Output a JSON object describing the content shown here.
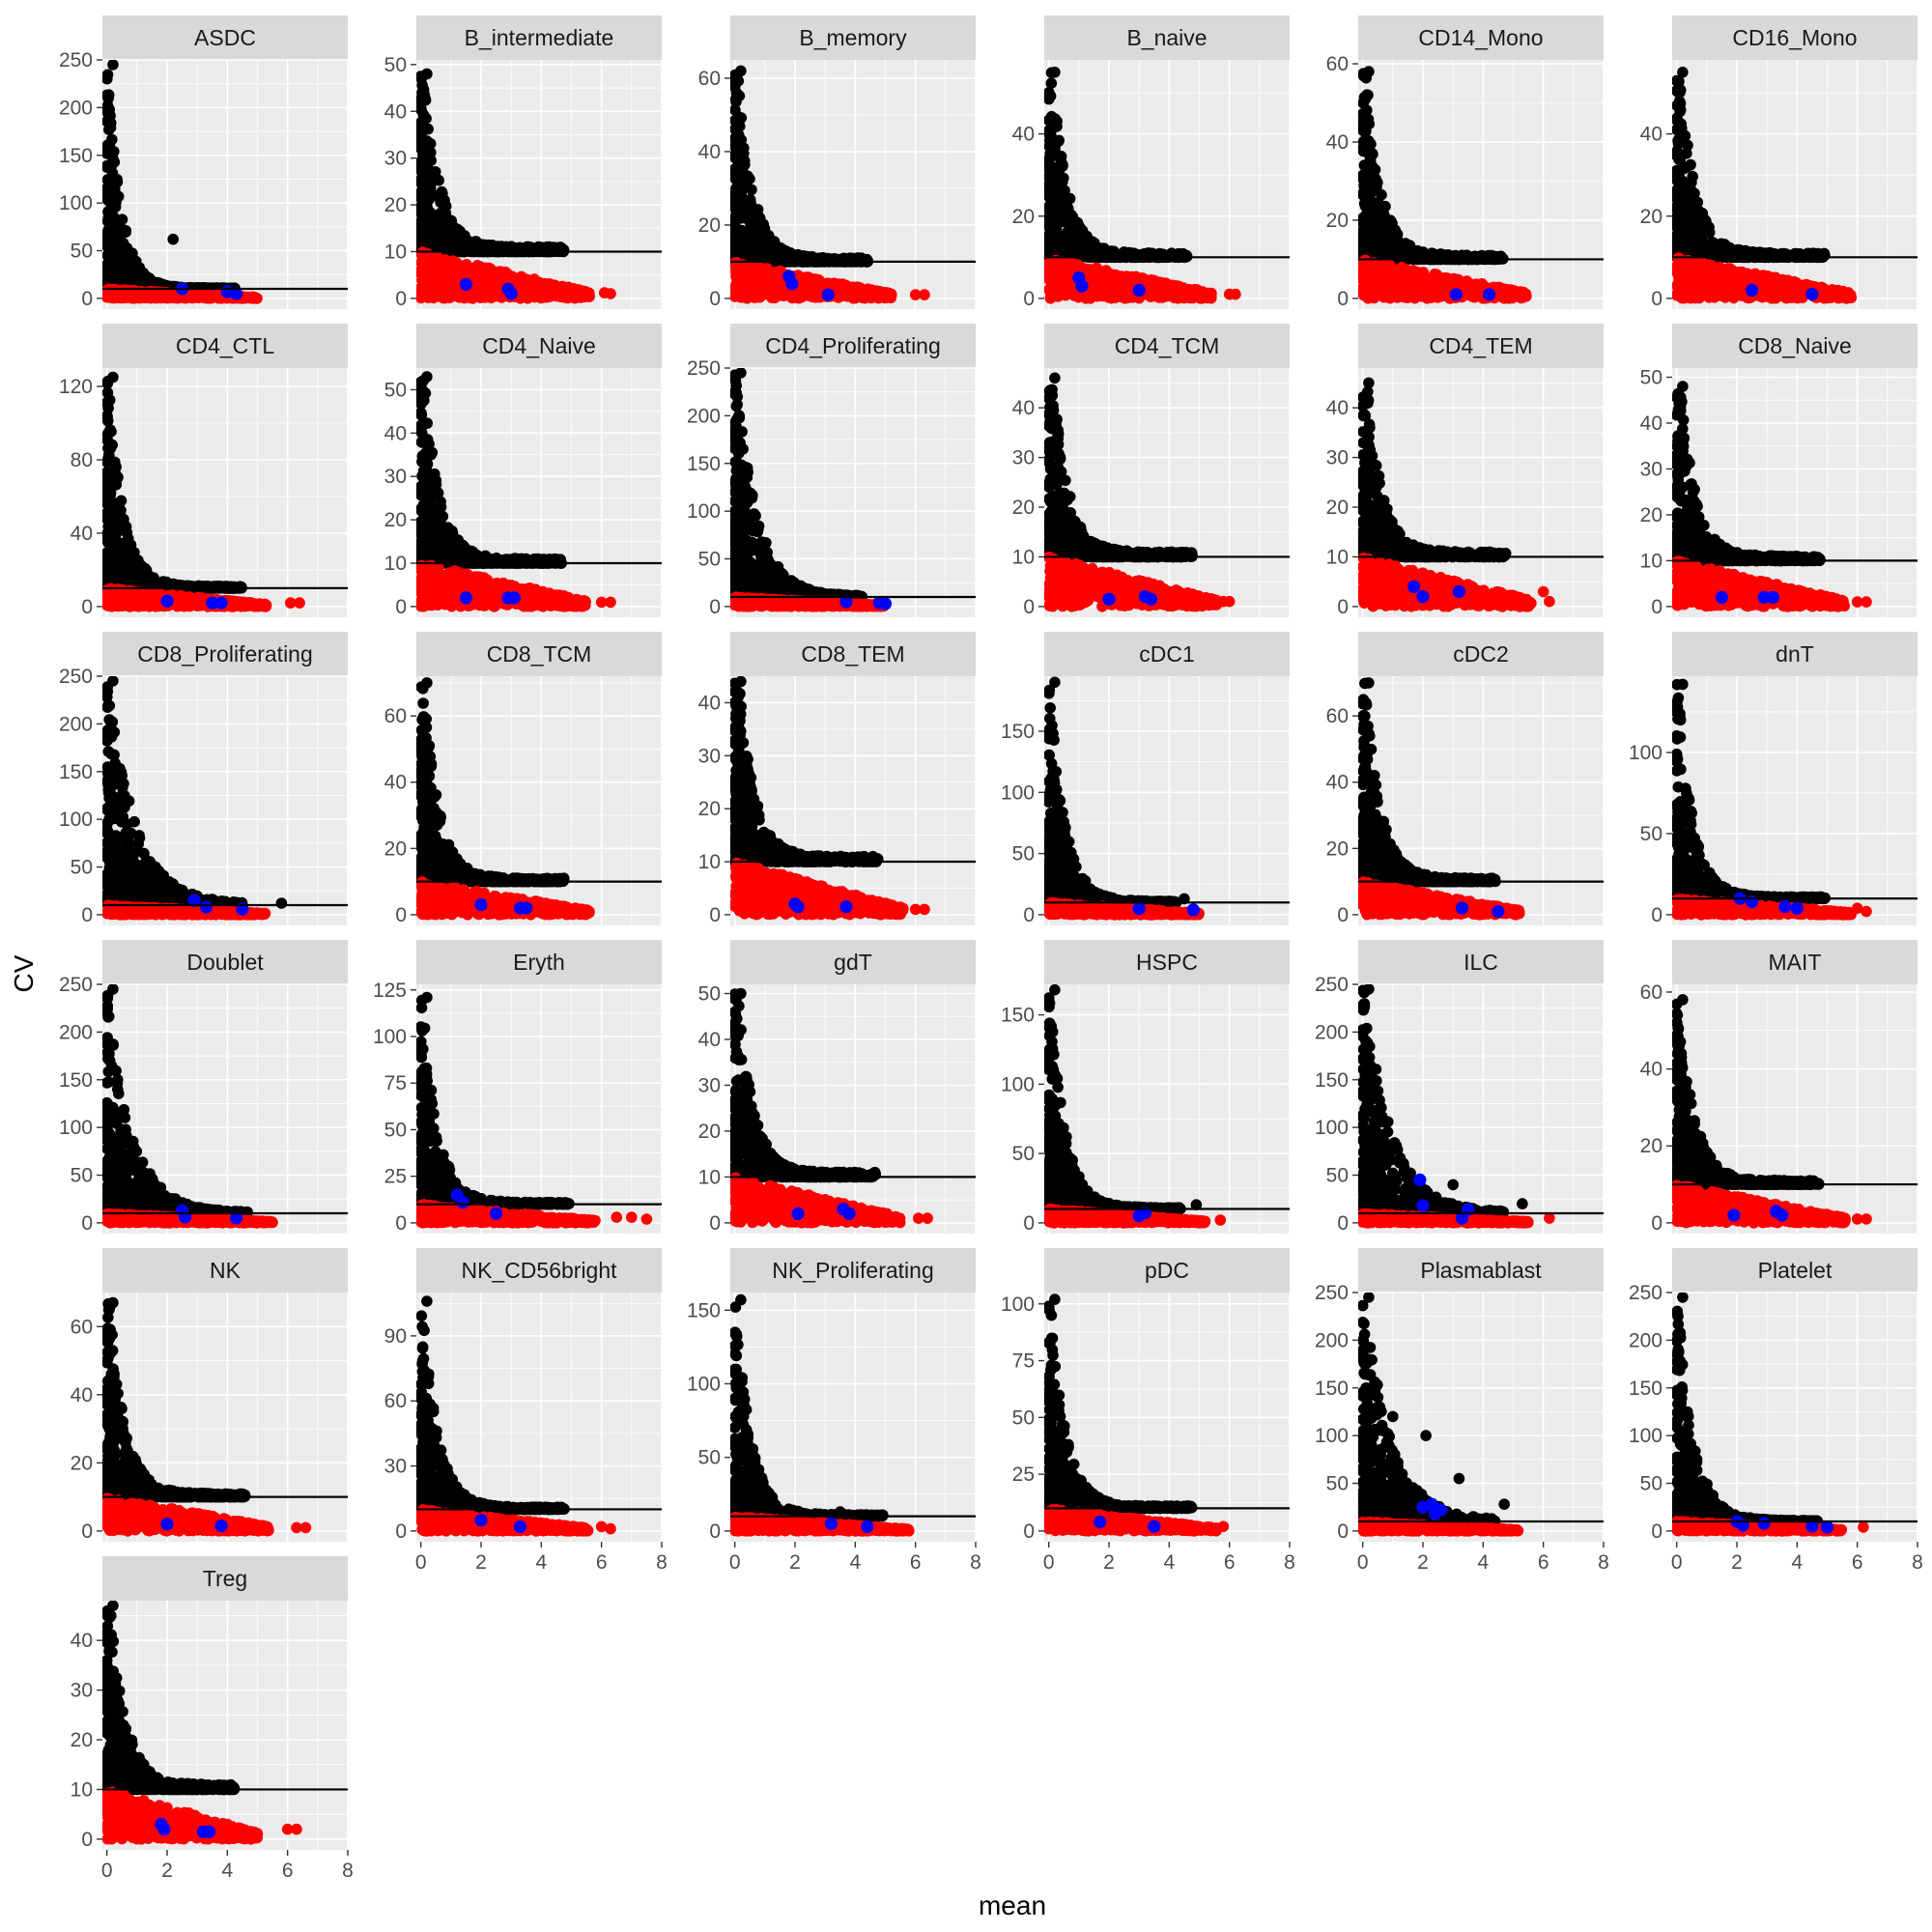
{
  "chart_data": {
    "type": "scatter",
    "layout": "facet_wrap",
    "xlabel": "mean",
    "ylabel": "CV",
    "xlim": [
      -0.15,
      8
    ],
    "x_ticks": [
      0,
      2,
      4,
      6,
      8
    ],
    "threshold_cv": 10,
    "colors": {
      "above_threshold": "#000000",
      "below_threshold": "#ff0000",
      "highlighted": "#0000ff",
      "threshold_line": "#000000"
    },
    "panels": [
      {
        "name": "ASDC",
        "ymax": 250,
        "yticks": [
          0,
          50,
          100,
          150,
          200,
          250
        ],
        "maxcv": 245,
        "meanmax": 5.0,
        "decay": 0.45,
        "blue": [
          [
            2.5,
            10
          ],
          [
            4.0,
            7
          ],
          [
            4.3,
            5
          ]
        ],
        "outliers": [
          [
            2.2,
            62
          ]
        ]
      },
      {
        "name": "B_intermediate",
        "ymax": 51,
        "yticks": [
          0,
          10,
          20,
          30,
          40,
          50
        ],
        "maxcv": 48,
        "meanmax": 5.6,
        "decay": 0.5,
        "blue": [
          [
            1.5,
            3
          ],
          [
            2.9,
            2
          ],
          [
            3.0,
            1
          ]
        ],
        "outliers": [
          [
            6.1,
            1.2
          ],
          [
            6.3,
            1
          ]
        ]
      },
      {
        "name": "B_memory",
        "ymax": 65,
        "yticks": [
          0,
          20,
          40,
          60
        ],
        "maxcv": 62,
        "meanmax": 5.2,
        "decay": 0.5,
        "blue": [
          [
            1.8,
            6
          ],
          [
            1.9,
            4
          ],
          [
            3.1,
            1
          ]
        ],
        "outliers": [
          [
            6.0,
            1
          ],
          [
            6.3,
            1
          ]
        ]
      },
      {
        "name": "B_naive",
        "ymax": 58,
        "yticks": [
          0,
          20,
          40
        ],
        "maxcv": 55,
        "meanmax": 5.4,
        "decay": 0.5,
        "blue": [
          [
            1.0,
            5
          ],
          [
            1.1,
            3
          ],
          [
            3.0,
            2
          ]
        ],
        "outliers": [
          [
            6.0,
            1
          ],
          [
            6.2,
            1
          ]
        ]
      },
      {
        "name": "CD14_Mono",
        "ymax": 61,
        "yticks": [
          0,
          20,
          40,
          60
        ],
        "maxcv": 58,
        "meanmax": 5.5,
        "decay": 0.5,
        "blue": [
          [
            3.1,
            1
          ],
          [
            4.2,
            1
          ]
        ],
        "outliers": []
      },
      {
        "name": "CD16_Mono",
        "ymax": 58,
        "yticks": [
          0,
          20,
          40
        ],
        "maxcv": 55,
        "meanmax": 5.8,
        "decay": 0.5,
        "blue": [
          [
            2.5,
            2
          ],
          [
            4.5,
            1
          ]
        ],
        "outliers": [
          [
            2.6,
            10
          ]
        ]
      },
      {
        "name": "CD4_CTL",
        "ymax": 130,
        "yticks": [
          0,
          40,
          80,
          120
        ],
        "maxcv": 125,
        "meanmax": 5.3,
        "decay": 0.5,
        "blue": [
          [
            2.0,
            3
          ],
          [
            3.5,
            2
          ],
          [
            3.8,
            2
          ]
        ],
        "outliers": [
          [
            6.1,
            2
          ],
          [
            6.4,
            2
          ]
        ]
      },
      {
        "name": "CD4_Naive",
        "ymax": 55,
        "yticks": [
          0,
          10,
          20,
          30,
          40,
          50
        ],
        "maxcv": 53,
        "meanmax": 5.5,
        "decay": 0.5,
        "blue": [
          [
            1.5,
            2
          ],
          [
            2.9,
            2
          ],
          [
            3.1,
            2
          ]
        ],
        "outliers": [
          [
            6.0,
            1
          ],
          [
            6.3,
            1
          ]
        ]
      },
      {
        "name": "CD4_Proliferating",
        "ymax": 250,
        "yticks": [
          0,
          50,
          100,
          150,
          200,
          250
        ],
        "maxcv": 245,
        "meanmax": 5.0,
        "decay": 0.7,
        "blue": [
          [
            3.7,
            5
          ],
          [
            4.8,
            4
          ],
          [
            5.0,
            3
          ]
        ],
        "outliers": []
      },
      {
        "name": "CD4_TCM",
        "ymax": 48,
        "yticks": [
          0,
          10,
          20,
          30,
          40
        ],
        "maxcv": 46,
        "meanmax": 5.6,
        "decay": 0.5,
        "blue": [
          [
            2.0,
            1.5
          ],
          [
            3.2,
            2
          ],
          [
            3.4,
            1.5
          ]
        ],
        "outliers": [
          [
            5.8,
            1
          ],
          [
            6.0,
            1
          ]
        ]
      },
      {
        "name": "CD4_TEM",
        "ymax": 48,
        "yticks": [
          0,
          10,
          20,
          30,
          40
        ],
        "maxcv": 45,
        "meanmax": 5.6,
        "decay": 0.5,
        "blue": [
          [
            1.7,
            4
          ],
          [
            2.0,
            2
          ],
          [
            3.2,
            3
          ]
        ],
        "outliers": [
          [
            6.0,
            3
          ],
          [
            6.2,
            1
          ]
        ]
      },
      {
        "name": "CD8_Naive",
        "ymax": 52,
        "yticks": [
          0,
          10,
          20,
          30,
          40,
          50
        ],
        "maxcv": 48,
        "meanmax": 5.6,
        "decay": 0.5,
        "blue": [
          [
            1.5,
            2
          ],
          [
            2.9,
            2
          ],
          [
            3.2,
            2
          ]
        ],
        "outliers": [
          [
            6.0,
            1
          ],
          [
            6.3,
            1
          ]
        ]
      },
      {
        "name": "CD8_Proliferating",
        "ymax": 250,
        "yticks": [
          0,
          50,
          100,
          150,
          200,
          250
        ],
        "maxcv": 245,
        "meanmax": 5.3,
        "decay": 0.9,
        "blue": [
          [
            2.9,
            15
          ],
          [
            3.3,
            8
          ],
          [
            4.5,
            6
          ]
        ],
        "outliers": [
          [
            5.8,
            12
          ]
        ]
      },
      {
        "name": "CD8_TCM",
        "ymax": 72,
        "yticks": [
          0,
          20,
          40,
          60
        ],
        "maxcv": 70,
        "meanmax": 5.6,
        "decay": 0.5,
        "blue": [
          [
            2.0,
            3
          ],
          [
            3.3,
            2
          ],
          [
            3.5,
            2
          ]
        ],
        "outliers": []
      },
      {
        "name": "CD8_TEM",
        "ymax": 45,
        "yticks": [
          0,
          10,
          20,
          30,
          40
        ],
        "maxcv": 44,
        "meanmax": 5.6,
        "decay": 0.5,
        "blue": [
          [
            2.0,
            2
          ],
          [
            2.1,
            1.5
          ],
          [
            3.7,
            1.5
          ]
        ],
        "outliers": [
          [
            6.0,
            1
          ],
          [
            6.3,
            1
          ]
        ]
      },
      {
        "name": "cDC1",
        "ymax": 195,
        "yticks": [
          0,
          50,
          100,
          150
        ],
        "maxcv": 190,
        "meanmax": 5.0,
        "decay": 0.5,
        "blue": [
          [
            3.0,
            5
          ],
          [
            4.8,
            4
          ]
        ],
        "outliers": [
          [
            4.5,
            13
          ]
        ]
      },
      {
        "name": "cDC2",
        "ymax": 72,
        "yticks": [
          0,
          20,
          40,
          60
        ],
        "maxcv": 70,
        "meanmax": 5.2,
        "decay": 0.5,
        "blue": [
          [
            3.3,
            2
          ],
          [
            4.5,
            1
          ]
        ],
        "outliers": []
      },
      {
        "name": "dnT",
        "ymax": 147,
        "yticks": [
          0,
          50,
          100
        ],
        "maxcv": 142,
        "meanmax": 5.8,
        "decay": 0.5,
        "blue": [
          [
            2.1,
            10
          ],
          [
            2.5,
            8
          ],
          [
            3.6,
            5
          ],
          [
            4.0,
            4
          ]
        ],
        "outliers": [
          [
            6.0,
            4
          ],
          [
            6.3,
            2
          ]
        ]
      },
      {
        "name": "Doublet",
        "ymax": 250,
        "yticks": [
          0,
          50,
          100,
          150,
          200,
          250
        ],
        "maxcv": 245,
        "meanmax": 5.5,
        "decay": 0.8,
        "blue": [
          [
            2.5,
            13
          ],
          [
            2.6,
            6
          ],
          [
            4.3,
            5
          ]
        ],
        "outliers": []
      },
      {
        "name": "Eryth",
        "ymax": 128,
        "yticks": [
          0,
          25,
          50,
          75,
          100,
          125
        ],
        "maxcv": 121,
        "meanmax": 5.8,
        "decay": 0.5,
        "blue": [
          [
            1.2,
            15
          ],
          [
            1.4,
            11
          ],
          [
            2.5,
            5
          ]
        ],
        "outliers": [
          [
            6.5,
            3
          ],
          [
            7.0,
            3
          ],
          [
            7.5,
            2
          ]
        ]
      },
      {
        "name": "gdT",
        "ymax": 52,
        "yticks": [
          0,
          10,
          20,
          30,
          40,
          50
        ],
        "maxcv": 50,
        "meanmax": 5.5,
        "decay": 0.5,
        "blue": [
          [
            2.1,
            2
          ],
          [
            3.6,
            3
          ],
          [
            3.8,
            2
          ]
        ],
        "outliers": [
          [
            6.1,
            1
          ],
          [
            6.4,
            1
          ]
        ]
      },
      {
        "name": "HSPC",
        "ymax": 172,
        "yticks": [
          0,
          50,
          100,
          150
        ],
        "maxcv": 168,
        "meanmax": 5.2,
        "decay": 0.5,
        "blue": [
          [
            3.0,
            5
          ],
          [
            3.2,
            7
          ]
        ],
        "outliers": [
          [
            4.9,
            13
          ],
          [
            5.7,
            2
          ]
        ]
      },
      {
        "name": "ILC",
        "ymax": 250,
        "yticks": [
          0,
          50,
          100,
          150,
          200,
          250
        ],
        "maxcv": 245,
        "meanmax": 5.5,
        "decay": 0.9,
        "blue": [
          [
            1.9,
            45
          ],
          [
            2.0,
            18
          ],
          [
            3.5,
            14
          ],
          [
            3.3,
            5
          ]
        ],
        "outliers": [
          [
            3.0,
            40
          ],
          [
            5.3,
            20
          ],
          [
            6.2,
            5
          ]
        ]
      },
      {
        "name": "MAIT",
        "ymax": 62,
        "yticks": [
          0,
          20,
          40,
          60
        ],
        "maxcv": 58,
        "meanmax": 5.6,
        "decay": 0.5,
        "blue": [
          [
            1.9,
            2
          ],
          [
            3.3,
            3
          ],
          [
            3.5,
            2
          ]
        ],
        "outliers": [
          [
            6.0,
            1
          ],
          [
            6.3,
            1
          ]
        ]
      },
      {
        "name": "NK",
        "ymax": 70,
        "yticks": [
          0,
          20,
          40,
          60
        ],
        "maxcv": 67,
        "meanmax": 5.4,
        "decay": 0.5,
        "blue": [
          [
            2.0,
            2
          ],
          [
            3.8,
            1.5
          ]
        ],
        "outliers": [
          [
            6.3,
            1
          ],
          [
            6.6,
            1
          ]
        ]
      },
      {
        "name": "NK_CD56bright",
        "ymax": 110,
        "yticks": [
          0,
          30,
          60,
          90
        ],
        "maxcv": 106,
        "meanmax": 5.6,
        "decay": 0.5,
        "blue": [
          [
            2.0,
            5
          ],
          [
            3.3,
            2
          ]
        ],
        "outliers": [
          [
            6.0,
            2
          ],
          [
            6.3,
            1
          ]
        ]
      },
      {
        "name": "NK_Proliferating",
        "ymax": 162,
        "yticks": [
          0,
          50,
          100,
          150
        ],
        "maxcv": 157,
        "meanmax": 5.8,
        "decay": 0.5,
        "blue": [
          [
            3.2,
            5
          ],
          [
            4.4,
            3
          ]
        ],
        "outliers": [
          [
            3.5,
            13
          ]
        ]
      },
      {
        "name": "pDC",
        "ymax": 105,
        "yticks": [
          0,
          25,
          50,
          75,
          100
        ],
        "maxcv": 102,
        "meanmax": 5.6,
        "decay": 0.5,
        "blue": [
          [
            1.7,
            4
          ],
          [
            3.5,
            2
          ]
        ],
        "outliers": [
          [
            5.8,
            2
          ]
        ]
      },
      {
        "name": "Plasmablast",
        "ymax": 250,
        "yticks": [
          0,
          50,
          100,
          150,
          200,
          250
        ],
        "maxcv": 245,
        "meanmax": 5.2,
        "decay": 0.9,
        "blue": [
          [
            2.0,
            25
          ],
          [
            2.3,
            28
          ],
          [
            2.6,
            22
          ],
          [
            2.4,
            18
          ]
        ],
        "outliers": [
          [
            1.0,
            120
          ],
          [
            2.1,
            100
          ],
          [
            3.2,
            55
          ],
          [
            4.7,
            28
          ]
        ]
      },
      {
        "name": "Platelet",
        "ymax": 250,
        "yticks": [
          0,
          50,
          100,
          150,
          200,
          250
        ],
        "maxcv": 245,
        "meanmax": 5.5,
        "decay": 0.55,
        "blue": [
          [
            2.0,
            10
          ],
          [
            2.2,
            6
          ],
          [
            2.9,
            8
          ],
          [
            4.5,
            5
          ],
          [
            5.0,
            4
          ]
        ],
        "outliers": [
          [
            6.2,
            4
          ]
        ]
      },
      {
        "name": "Treg",
        "ymax": 48,
        "yticks": [
          0,
          10,
          20,
          30,
          40
        ],
        "maxcv": 47,
        "meanmax": 5.0,
        "decay": 0.5,
        "blue": [
          [
            1.8,
            3
          ],
          [
            1.9,
            2
          ],
          [
            3.2,
            1.5
          ],
          [
            3.4,
            1.5
          ]
        ],
        "outliers": [
          [
            6.0,
            2
          ],
          [
            6.3,
            2
          ]
        ]
      }
    ]
  }
}
